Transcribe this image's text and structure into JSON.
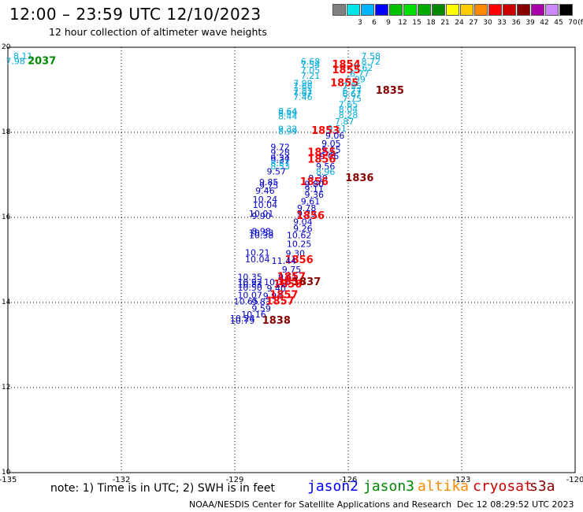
{
  "header": {
    "title": "12:00 – 23:59 UTC 12/10/2023",
    "subtitle": "12 hour collection of altimeter wave heights"
  },
  "legend": {
    "unit": "(ft)",
    "bins": [
      {
        "color": "#808080",
        "label": ""
      },
      {
        "color": "#00e5e5",
        "label": "3"
      },
      {
        "color": "#00b5ff",
        "label": "6"
      },
      {
        "color": "#0000ff",
        "label": "9"
      },
      {
        "color": "#00c000",
        "label": "12"
      },
      {
        "color": "#00e000",
        "label": "15"
      },
      {
        "color": "#00aa00",
        "label": "18"
      },
      {
        "color": "#008800",
        "label": "21"
      },
      {
        "color": "#ffff00",
        "label": "24"
      },
      {
        "color": "#ffcc00",
        "label": "27"
      },
      {
        "color": "#ff8800",
        "label": "30"
      },
      {
        "color": "#ff0000",
        "label": "33"
      },
      {
        "color": "#cc0000",
        "label": "36"
      },
      {
        "color": "#880000",
        "label": "39"
      },
      {
        "color": "#aa00aa",
        "label": "42"
      },
      {
        "color": "#cc88ff",
        "label": "45"
      },
      {
        "color": "#000000",
        "label": "70"
      }
    ]
  },
  "map": {
    "x_ticks": [
      "-135",
      "-132",
      "-129",
      "-126",
      "-123",
      "-120"
    ],
    "y_ticks": [
      "20",
      "18",
      "16",
      "14",
      "12",
      "10"
    ],
    "lon_range": [
      -135,
      -120
    ],
    "lat_range": [
      10,
      20
    ]
  },
  "observations": [
    {
      "text": "8.11",
      "lon": -134.6,
      "lat": 19.8,
      "color": "#00aadd"
    },
    {
      "text": "7.98",
      "lon": -134.8,
      "lat": 19.68,
      "color": "#00aadd"
    },
    {
      "text": "2037",
      "lon": -134.1,
      "lat": 19.68,
      "color": "#008800",
      "bold": true
    },
    {
      "text": "7.58",
      "lon": -125.4,
      "lat": 19.8,
      "color": "#00aadd"
    },
    {
      "text": "6.68",
      "lon": -127.0,
      "lat": 19.67,
      "color": "#00aadd"
    },
    {
      "text": "8.72",
      "lon": -125.4,
      "lat": 19.67,
      "color": "#00aadd"
    },
    {
      "text": "7.54",
      "lon": -127.0,
      "lat": 19.59,
      "color": "#00aadd"
    },
    {
      "text": "1854",
      "lon": -126.05,
      "lat": 19.59,
      "color": "#ff0000",
      "bold": true
    },
    {
      "text": "7.62",
      "lon": -125.6,
      "lat": 19.52,
      "color": "#00aadd"
    },
    {
      "text": "7.05",
      "lon": -127.0,
      "lat": 19.46,
      "color": "#00aadd"
    },
    {
      "text": "1855",
      "lon": -126.05,
      "lat": 19.46,
      "color": "#ff0000",
      "bold": true
    },
    {
      "text": "6.77",
      "lon": -125.7,
      "lat": 19.38,
      "color": "#00aadd"
    },
    {
      "text": "7.21",
      "lon": -127.0,
      "lat": 19.33,
      "color": "#00aadd"
    },
    {
      "text": "6.99",
      "lon": -125.8,
      "lat": 19.25,
      "color": "#00aadd"
    },
    {
      "text": "7.99",
      "lon": -127.2,
      "lat": 19.16,
      "color": "#00aadd"
    },
    {
      "text": "1855",
      "lon": -126.1,
      "lat": 19.16,
      "color": "#ff0000",
      "bold": true
    },
    {
      "text": "7.68",
      "lon": -127.2,
      "lat": 19.09,
      "color": "#00aadd"
    },
    {
      "text": "7.95",
      "lon": -125.9,
      "lat": 19.09,
      "color": "#00aadd"
    },
    {
      "text": "7.81",
      "lon": -127.2,
      "lat": 18.98,
      "color": "#00aadd"
    },
    {
      "text": "1835",
      "lon": -124.9,
      "lat": 18.98,
      "color": "#880000",
      "bold": true
    },
    {
      "text": "6.77",
      "lon": -125.9,
      "lat": 18.98,
      "color": "#00aadd"
    },
    {
      "text": "7.67",
      "lon": -127.2,
      "lat": 18.93,
      "color": "#00aadd"
    },
    {
      "text": "6.67",
      "lon": -125.9,
      "lat": 18.91,
      "color": "#00aadd"
    },
    {
      "text": "7.46",
      "lon": -127.2,
      "lat": 18.83,
      "color": "#00aadd"
    },
    {
      "text": "7.75",
      "lon": -125.9,
      "lat": 18.8,
      "color": "#00aadd"
    },
    {
      "text": "7.65",
      "lon": -126.0,
      "lat": 18.66,
      "color": "#00aadd"
    },
    {
      "text": "8.04",
      "lon": -126.0,
      "lat": 18.55,
      "color": "#00aadd"
    },
    {
      "text": "8.64",
      "lon": -127.6,
      "lat": 18.5,
      "color": "#00aadd"
    },
    {
      "text": "8.49",
      "lon": -127.6,
      "lat": 18.45,
      "color": "#00aadd"
    },
    {
      "text": "8.28",
      "lon": -126.0,
      "lat": 18.41,
      "color": "#00aadd"
    },
    {
      "text": "8.44",
      "lon": -127.6,
      "lat": 18.38,
      "color": "#00aadd"
    },
    {
      "text": "7.87",
      "lon": -126.1,
      "lat": 18.26,
      "color": "#00aadd"
    },
    {
      "text": "9.32",
      "lon": -127.6,
      "lat": 18.08,
      "color": "#00aadd"
    },
    {
      "text": "9.51",
      "lon": -126.3,
      "lat": 18.09,
      "color": "#00aadd"
    },
    {
      "text": "8.99",
      "lon": -127.6,
      "lat": 18.03,
      "color": "#00aadd"
    },
    {
      "text": "1853",
      "lon": -126.6,
      "lat": 18.04,
      "color": "#ff0000",
      "bold": true
    },
    {
      "text": "9.06",
      "lon": -126.35,
      "lat": 17.93,
      "color": "#0000cc"
    },
    {
      "text": "9.05",
      "lon": -126.45,
      "lat": 17.74,
      "color": "#0000cc"
    },
    {
      "text": "9.72",
      "lon": -127.8,
      "lat": 17.66,
      "color": "#0000cc"
    },
    {
      "text": "9.15",
      "lon": -126.45,
      "lat": 17.59,
      "color": "#0000cc"
    },
    {
      "text": "9.28",
      "lon": -127.8,
      "lat": 17.53,
      "color": "#0000cc"
    },
    {
      "text": "1855",
      "lon": -126.7,
      "lat": 17.53,
      "color": "#ff0000",
      "bold": true
    },
    {
      "text": "9.06",
      "lon": -126.5,
      "lat": 17.44,
      "color": "#0000cc"
    },
    {
      "text": "9.34",
      "lon": -127.8,
      "lat": 17.4,
      "color": "#0000cc"
    },
    {
      "text": "1856",
      "lon": -126.7,
      "lat": 17.36,
      "color": "#ff0000",
      "bold": true
    },
    {
      "text": "9.37",
      "lon": -127.8,
      "lat": 17.35,
      "color": "#0000cc"
    },
    {
      "text": "8.57",
      "lon": -127.8,
      "lat": 17.28,
      "color": "#00aadd"
    },
    {
      "text": "8.53",
      "lon": -127.8,
      "lat": 17.2,
      "color": "#00aadd"
    },
    {
      "text": "9.56",
      "lon": -126.6,
      "lat": 17.2,
      "color": "#0000cc"
    },
    {
      "text": "9.57",
      "lon": -127.9,
      "lat": 17.08,
      "color": "#0000cc"
    },
    {
      "text": "8.96",
      "lon": -126.6,
      "lat": 17.07,
      "color": "#00aadd"
    },
    {
      "text": "9.39",
      "lon": -126.8,
      "lat": 16.93,
      "color": "#0000cc"
    },
    {
      "text": "1836",
      "lon": -125.7,
      "lat": 16.93,
      "color": "#880000",
      "bold": true
    },
    {
      "text": "9.85",
      "lon": -128.1,
      "lat": 16.83,
      "color": "#0000cc"
    },
    {
      "text": "1856",
      "lon": -126.9,
      "lat": 16.83,
      "color": "#ff0000",
      "bold": true
    },
    {
      "text": "9.80",
      "lon": -126.9,
      "lat": 16.79,
      "color": "#0000cc"
    },
    {
      "text": "9.75",
      "lon": -128.1,
      "lat": 16.75,
      "color": "#0000cc"
    },
    {
      "text": "9.11",
      "lon": -126.9,
      "lat": 16.68,
      "color": "#0000cc"
    },
    {
      "text": "9.46",
      "lon": -128.2,
      "lat": 16.63,
      "color": "#0000cc"
    },
    {
      "text": "9.36",
      "lon": -126.9,
      "lat": 16.54,
      "color": "#0000cc"
    },
    {
      "text": "10.24",
      "lon": -128.2,
      "lat": 16.43,
      "color": "#0000cc"
    },
    {
      "text": "9.61",
      "lon": -127.0,
      "lat": 16.38,
      "color": "#0000cc"
    },
    {
      "text": "10.04",
      "lon": -128.2,
      "lat": 16.3,
      "color": "#0000cc"
    },
    {
      "text": "9.78",
      "lon": -127.1,
      "lat": 16.22,
      "color": "#0000cc"
    },
    {
      "text": "10.01",
      "lon": -128.3,
      "lat": 16.09,
      "color": "#0000cc"
    },
    {
      "text": "9.79",
      "lon": -127.1,
      "lat": 16.09,
      "color": "#0000cc"
    },
    {
      "text": "9.90",
      "lon": -128.3,
      "lat": 16.04,
      "color": "#0000cc"
    },
    {
      "text": "1856",
      "lon": -127.0,
      "lat": 16.04,
      "color": "#ff0000",
      "bold": true
    },
    {
      "text": "9.04",
      "lon": -127.2,
      "lat": 15.9,
      "color": "#0000cc"
    },
    {
      "text": "9.26",
      "lon": -127.2,
      "lat": 15.74,
      "color": "#0000cc"
    },
    {
      "text": "8.98",
      "lon": -128.3,
      "lat": 15.68,
      "color": "#0000cc"
    },
    {
      "text": "10.53",
      "lon": -128.3,
      "lat": 15.64,
      "color": "#0000cc"
    },
    {
      "text": "10.38",
      "lon": -128.3,
      "lat": 15.58,
      "color": "#0000cc"
    },
    {
      "text": "10.62",
      "lon": -127.3,
      "lat": 15.58,
      "color": "#0000cc"
    },
    {
      "text": "10.25",
      "lon": -127.3,
      "lat": 15.38,
      "color": "#0000cc"
    },
    {
      "text": "10.21",
      "lon": -128.4,
      "lat": 15.18,
      "color": "#0000cc"
    },
    {
      "text": "9.30",
      "lon": -127.4,
      "lat": 15.16,
      "color": "#0000cc"
    },
    {
      "text": "1856",
      "lon": -127.3,
      "lat": 15.0,
      "color": "#ff0000",
      "bold": true
    },
    {
      "text": "10.04",
      "lon": -128.4,
      "lat": 15.02,
      "color": "#0000cc"
    },
    {
      "text": "11.44",
      "lon": -127.7,
      "lat": 14.98,
      "color": "#0000cc"
    },
    {
      "text": "9.75",
      "lon": -127.5,
      "lat": 14.78,
      "color": "#0000cc"
    },
    {
      "text": "10.35",
      "lon": -128.6,
      "lat": 14.6,
      "color": "#0000cc"
    },
    {
      "text": "9.61",
      "lon": -127.6,
      "lat": 14.6,
      "color": "#0000cc"
    },
    {
      "text": "1857",
      "lon": -127.5,
      "lat": 14.6,
      "color": "#ff0000",
      "bold": true
    },
    {
      "text": "10.92",
      "lon": -128.6,
      "lat": 14.48,
      "color": "#0000cc"
    },
    {
      "text": "10.33",
      "lon": -127.9,
      "lat": 14.48,
      "color": "#0000cc"
    },
    {
      "text": "1856",
      "lon": -127.5,
      "lat": 14.48,
      "color": "#ff0000",
      "bold": true
    },
    {
      "text": "1837",
      "lon": -127.1,
      "lat": 14.48,
      "color": "#880000",
      "bold": true
    },
    {
      "text": "10.83",
      "lon": -128.6,
      "lat": 14.43,
      "color": "#0000cc"
    },
    {
      "text": "1856",
      "lon": -127.6,
      "lat": 14.43,
      "color": "#ff0000",
      "bold": true
    },
    {
      "text": "10.50",
      "lon": -128.6,
      "lat": 14.35,
      "color": "#0000cc"
    },
    {
      "text": "9.40",
      "lon": -127.9,
      "lat": 14.33,
      "color": "#0000cc"
    },
    {
      "text": "10.07",
      "lon": -128.6,
      "lat": 14.18,
      "color": "#0000cc"
    },
    {
      "text": "9.94",
      "lon": -128.0,
      "lat": 14.16,
      "color": "#0000cc"
    },
    {
      "text": "1857",
      "lon": -127.7,
      "lat": 14.18,
      "color": "#ff0000",
      "bold": true
    },
    {
      "text": "10.65",
      "lon": -128.7,
      "lat": 14.03,
      "color": "#0000cc"
    },
    {
      "text": "9.83",
      "lon": -128.3,
      "lat": 14.02,
      "color": "#0000cc"
    },
    {
      "text": "1857",
      "lon": -127.8,
      "lat": 14.03,
      "color": "#ff0000",
      "bold": true
    },
    {
      "text": "9.59",
      "lon": -128.3,
      "lat": 13.86,
      "color": "#0000cc"
    },
    {
      "text": "10.16",
      "lon": -128.5,
      "lat": 13.72,
      "color": "#0000cc"
    },
    {
      "text": "10.24",
      "lon": -128.8,
      "lat": 13.63,
      "color": "#0000cc"
    },
    {
      "text": "10.79",
      "lon": -128.8,
      "lat": 13.57,
      "color": "#0000cc"
    },
    {
      "text": "1838",
      "lon": -127.9,
      "lat": 13.57,
      "color": "#880000",
      "bold": true
    }
  ],
  "footer": {
    "note": "note: 1) Time is in UTC; 2) SWH is in feet",
    "satellites": [
      {
        "name": "jason2",
        "color": "#0000ff"
      },
      {
        "name": "jason3",
        "color": "#008800"
      },
      {
        "name": "altika",
        "color": "#ff8800"
      },
      {
        "name": "cryosat",
        "color": "#cc0000"
      },
      {
        "name": "s3a",
        "color": "#880000"
      }
    ],
    "credit": "NOAA/NESDIS Center for Satellite Applications and Research",
    "timestamp": "Dec 12 08:29:52 UTC 2023"
  }
}
